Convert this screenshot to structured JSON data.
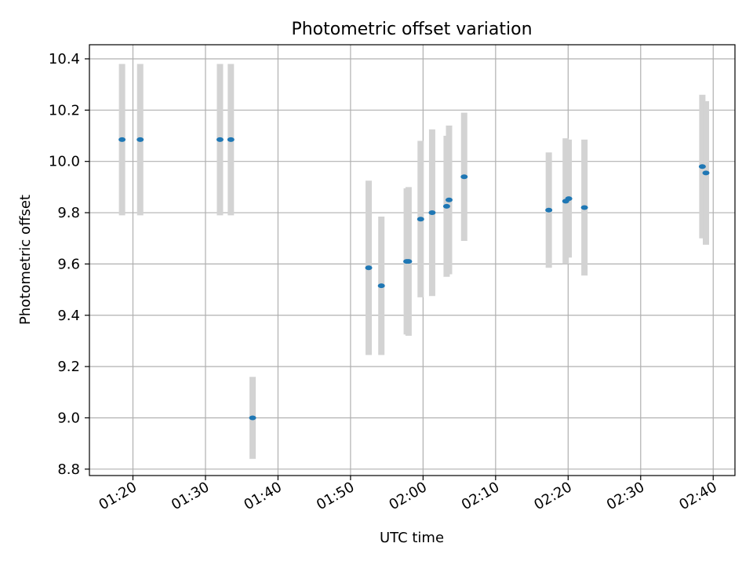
{
  "chart_data": {
    "type": "scatter",
    "title": "Photometric offset variation",
    "xlabel": "UTC time",
    "ylabel": "Photometric offset",
    "x_ticks": [
      "01:20",
      "01:30",
      "01:40",
      "01:50",
      "02:00",
      "02:10",
      "02:20",
      "02:30",
      "02:40"
    ],
    "y_ticks": [
      "8.8",
      "9.0",
      "9.2",
      "9.4",
      "9.6",
      "9.8",
      "10.0",
      "10.2",
      "10.4"
    ],
    "xlim": [
      "01:14",
      "02:43"
    ],
    "ylim": [
      8.775,
      10.455
    ],
    "grid": true,
    "legend": "none",
    "colors": {
      "point": "#1f77b4",
      "errorbar": "#d3d3d3"
    },
    "series": [
      {
        "points": [
          {
            "x": "01:18:30",
            "y": 10.085,
            "yerr": 0.295
          },
          {
            "x": "01:21:00",
            "y": 10.085,
            "yerr": 0.295
          },
          {
            "x": "01:32:00",
            "y": 10.085,
            "yerr": 0.295
          },
          {
            "x": "01:33:30",
            "y": 10.085,
            "yerr": 0.295
          },
          {
            "x": "01:36:30",
            "y": 9.0,
            "yerr": 0.16
          },
          {
            "x": "01:52:30",
            "y": 9.585,
            "yerr": 0.34
          },
          {
            "x": "01:54:15",
            "y": 9.515,
            "yerr": 0.27
          },
          {
            "x": "01:57:45",
            "y": 9.61,
            "yerr": 0.285
          },
          {
            "x": "01:58:00",
            "y": 9.61,
            "yerr": 0.29
          },
          {
            "x": "01:59:40",
            "y": 9.775,
            "yerr": 0.305
          },
          {
            "x": "02:01:15",
            "y": 9.8,
            "yerr": 0.325
          },
          {
            "x": "02:03:15",
            "y": 9.825,
            "yerr": 0.275
          },
          {
            "x": "02:03:35",
            "y": 9.85,
            "yerr": 0.29
          },
          {
            "x": "02:05:40",
            "y": 9.94,
            "yerr": 0.25
          },
          {
            "x": "02:17:20",
            "y": 9.81,
            "yerr": 0.225
          },
          {
            "x": "02:19:40",
            "y": 9.845,
            "yerr": 0.245
          },
          {
            "x": "02:20:05",
            "y": 9.855,
            "yerr": 0.23
          },
          {
            "x": "02:22:15",
            "y": 9.82,
            "yerr": 0.265
          },
          {
            "x": "02:38:30",
            "y": 9.98,
            "yerr": 0.28
          },
          {
            "x": "02:39:00",
            "y": 9.955,
            "yerr": 0.28
          }
        ]
      }
    ]
  }
}
